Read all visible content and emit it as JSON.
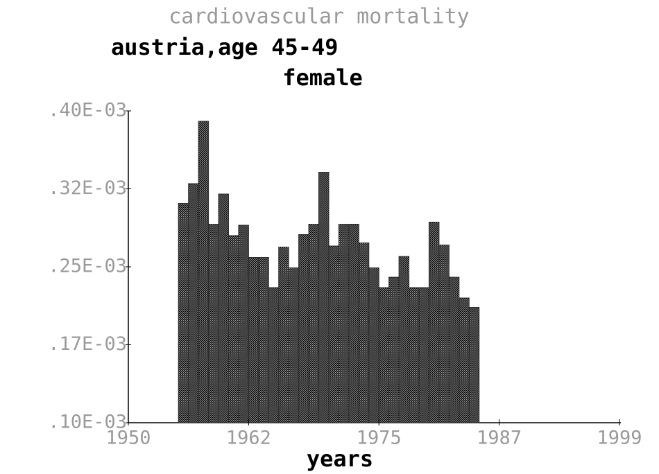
{
  "chart_data": {
    "type": "bar",
    "title": "cardiovascular mortality",
    "subtitle": "austria,age 45-49",
    "subtitle2": "female",
    "x_label": "years",
    "x": [
      1955,
      1956,
      1957,
      1958,
      1959,
      1960,
      1961,
      1962,
      1963,
      1964,
      1965,
      1966,
      1967,
      1968,
      1969,
      1970,
      1971,
      1972,
      1973,
      1974,
      1975,
      1976,
      1977,
      1978,
      1979,
      1980,
      1981,
      1982,
      1983,
      1984
    ],
    "values": [
      0.000311,
      0.00033,
      0.00039,
      0.000291,
      0.00032,
      0.00028,
      0.00029,
      0.000259,
      0.000259,
      0.00023,
      0.000269,
      0.000249,
      0.000281,
      0.000291,
      0.000341,
      0.00027,
      0.000291,
      0.000291,
      0.000273,
      0.000249,
      0.00023,
      0.00024,
      0.00026,
      0.00023,
      0.00023,
      0.000293,
      0.000271,
      0.00024,
      0.00022,
      0.000211
    ],
    "color": "#2a2a2a",
    "xlim": [
      1950,
      1999
    ],
    "xticks": [
      1950,
      1962,
      1975,
      1987,
      1999
    ],
    "ylim": [
      0.0001,
      0.0004
    ],
    "yticks": [
      {
        "value": 0.0001,
        "label": ".10E-03"
      },
      {
        "value": 0.000175,
        "label": ".17E-03"
      },
      {
        "value": 0.00025,
        "label": ".25E-03"
      },
      {
        "value": 0.000325,
        "label": ".32E-03"
      },
      {
        "value": 0.0004,
        "label": ".40E-03"
      }
    ]
  }
}
